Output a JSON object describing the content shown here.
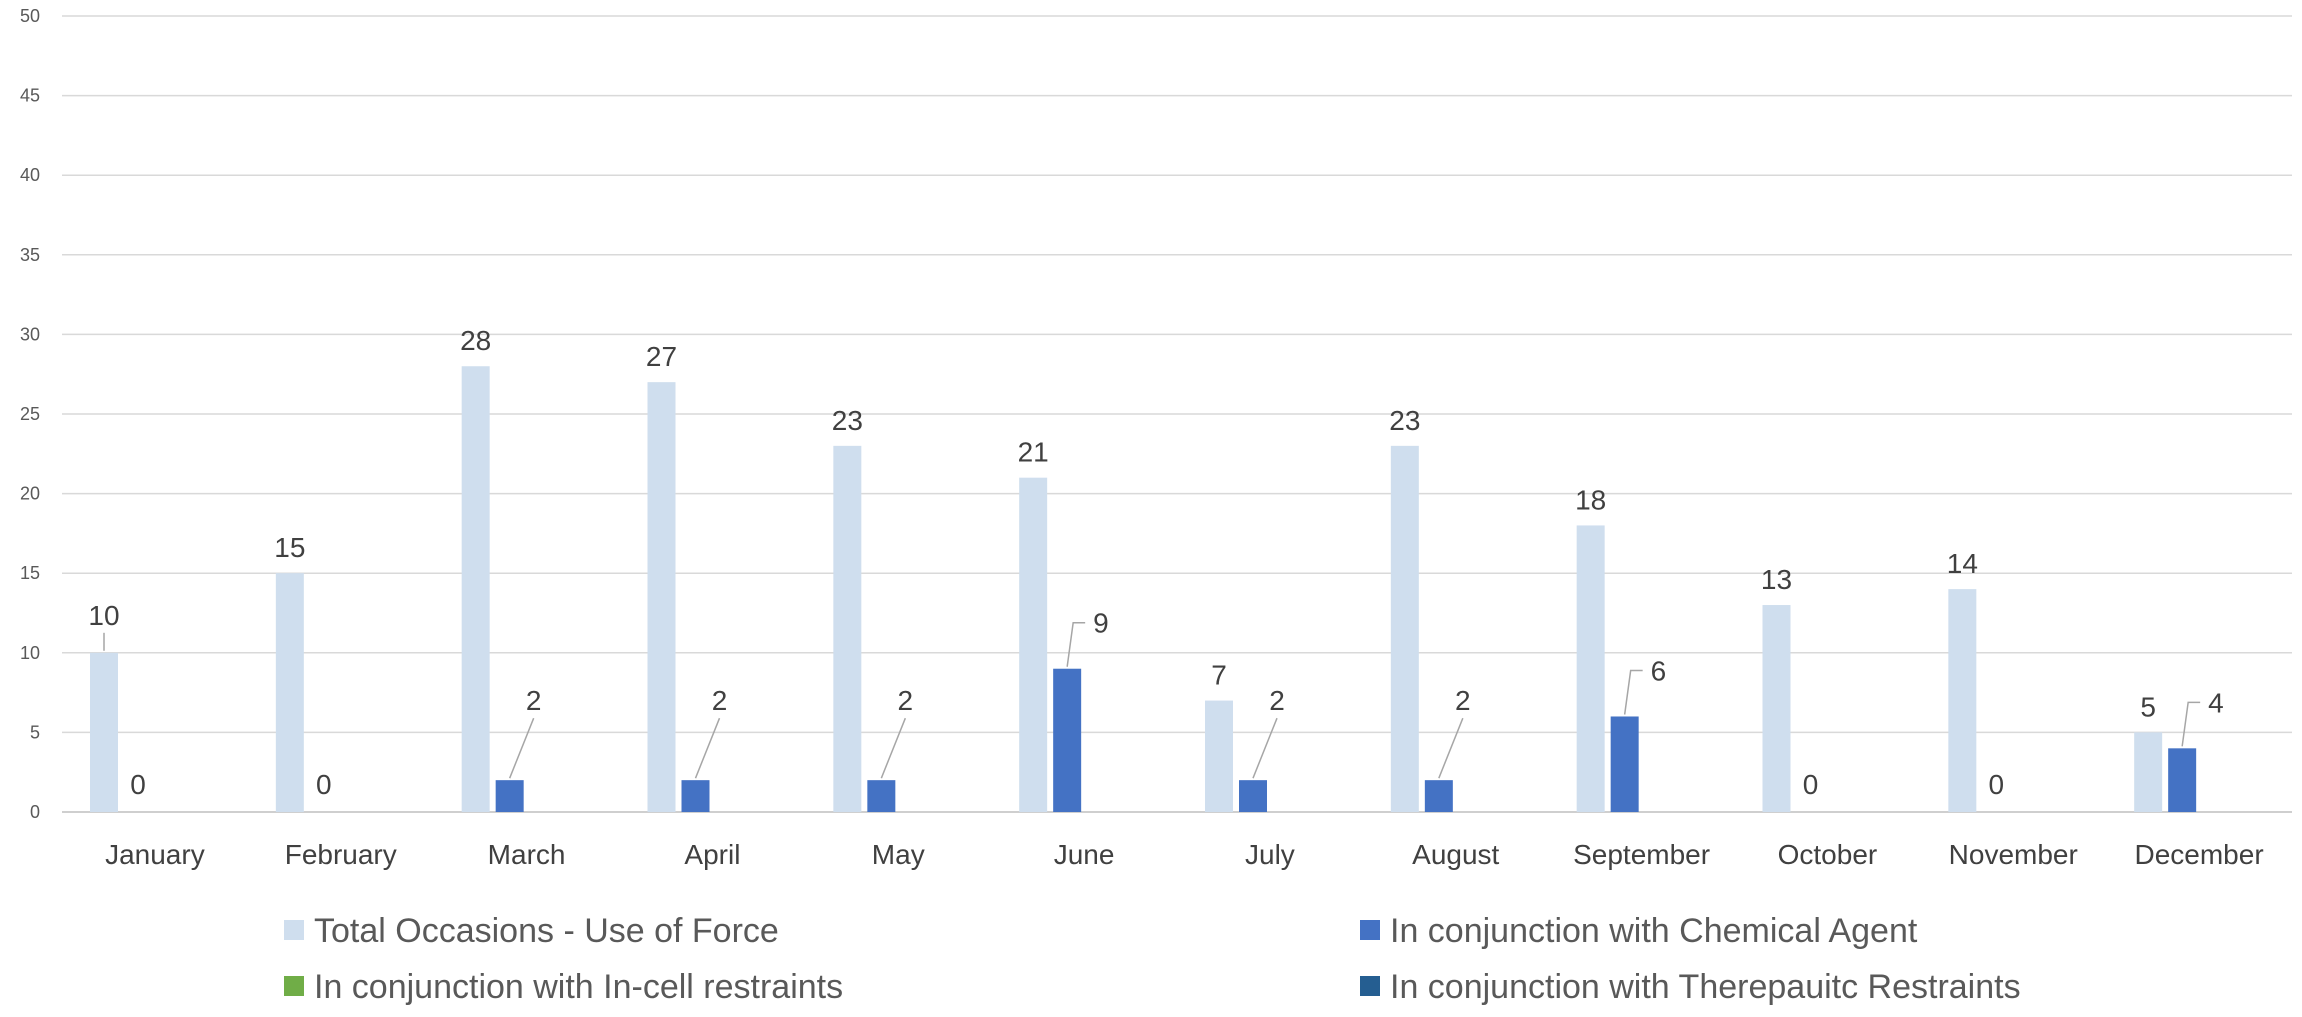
{
  "chart_data": {
    "type": "bar",
    "categories": [
      "January",
      "February",
      "March",
      "April",
      "May",
      "June",
      "July",
      "August",
      "September",
      "October",
      "November",
      "December"
    ],
    "series": [
      {
        "name": "Total Occasions - Use of Force",
        "color": "#cfdeee",
        "values": [
          10,
          15,
          28,
          27,
          23,
          21,
          7,
          23,
          18,
          13,
          14,
          5
        ]
      },
      {
        "name": "In conjunction with Chemical Agent",
        "color": "#4472c4",
        "values": [
          0,
          0,
          2,
          2,
          2,
          9,
          2,
          2,
          6,
          0,
          0,
          4
        ]
      },
      {
        "name": "In conjunction with In-cell restraints",
        "color": "#70ad47",
        "values": [
          null,
          null,
          null,
          null,
          null,
          null,
          null,
          null,
          null,
          null,
          null,
          null
        ]
      },
      {
        "name": "In conjunction with Therepauitc Restraints",
        "color": "#255e91",
        "values": [
          null,
          null,
          null,
          null,
          null,
          null,
          null,
          null,
          null,
          null,
          null,
          null
        ]
      }
    ],
    "ylim": [
      0,
      50
    ],
    "yticks": [
      0,
      5,
      10,
      15,
      20,
      25,
      30,
      35,
      40,
      45,
      50
    ],
    "grid": true,
    "legend_position": "bottom",
    "title": "",
    "xlabel": "",
    "ylabel": ""
  }
}
